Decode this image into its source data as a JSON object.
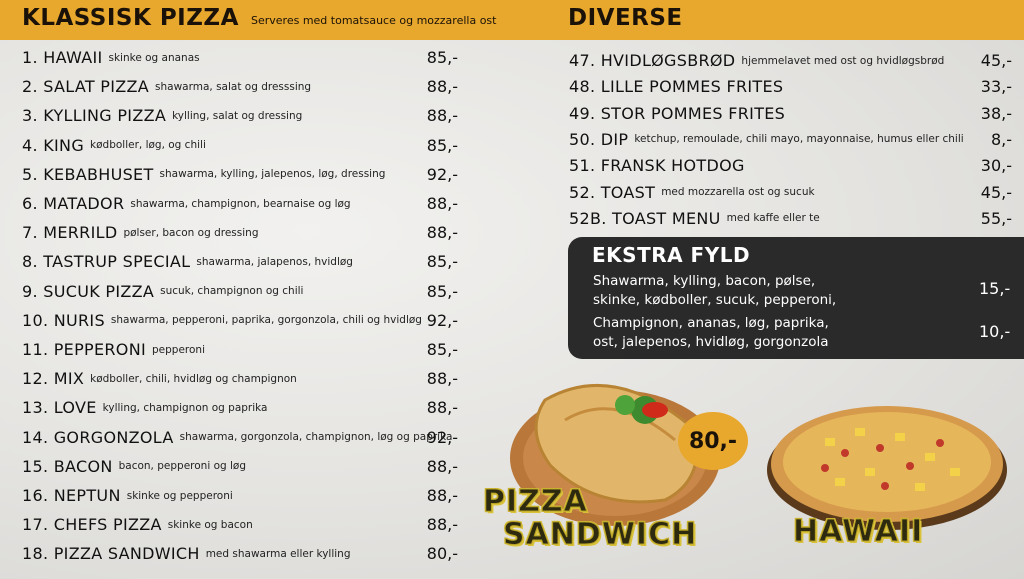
{
  "header": {
    "left_title": "KLASSISK PIZZA",
    "left_subtitle": "Serveres med tomatsauce og mozzarella ost",
    "right_title": "DIVERSE"
  },
  "pizzas": [
    {
      "name": "1. HAWAII",
      "desc": "skinke og ananas",
      "price": "85,-"
    },
    {
      "name": "2. SALAT PIZZA",
      "desc": "shawarma, salat og dresssing",
      "price": "88,-"
    },
    {
      "name": "3. KYLLING PIZZA",
      "desc": "kylling, salat og dressing",
      "price": "88,-"
    },
    {
      "name": "4. KING",
      "desc": "kødboller, løg, og chili",
      "price": "85,-"
    },
    {
      "name": "5. KEBABHUSET",
      "desc": "shawarma, kylling, jalepenos, løg, dressing",
      "price": "92,-"
    },
    {
      "name": "6. MATADOR",
      "desc": "shawarma, champignon, bearnaise og løg",
      "price": "88,-"
    },
    {
      "name": "7. MERRILD",
      "desc": "pølser, bacon og dressing",
      "price": "88,-"
    },
    {
      "name": "8. TASTRUP SPECIAL",
      "desc": "shawarma, jalapenos, hvidløg",
      "price": "85,-"
    },
    {
      "name": "9. SUCUK PIZZA",
      "desc": "sucuk, champignon og chili",
      "price": "85,-"
    },
    {
      "name": "10. NURIS",
      "desc": "shawarma, pepperoni, paprika, gorgonzola, chili og hvidløg",
      "price": "92,-"
    },
    {
      "name": "11. PEPPERONI",
      "desc": "pepperoni",
      "price": "85,-"
    },
    {
      "name": "12. MIX",
      "desc": "kødboller, chili, hvidløg og champignon",
      "price": "88,-"
    },
    {
      "name": "13. LOVE",
      "desc": "kylling, champignon og paprika",
      "price": "88,-"
    },
    {
      "name": "14. GORGONZOLA",
      "desc": "shawarma, gorgonzola, champignon, løg og paprika",
      "price": "92,-"
    },
    {
      "name": "15. BACON",
      "desc": "bacon, pepperoni  og løg",
      "price": "88,-"
    },
    {
      "name": "16. NEPTUN",
      "desc": "skinke og pepperoni",
      "price": "88,-"
    },
    {
      "name": "17. CHEFS PIZZA",
      "desc": "skinke og bacon",
      "price": "88,-"
    },
    {
      "name": "18. PIZZA SANDWICH",
      "desc": "med shawarma eller kylling",
      "price": "80,-"
    }
  ],
  "diverse": [
    {
      "name": "47. HVIDLØGSBRØD",
      "desc": "hjemmelavet med ost og hvidløgsbrød",
      "price": "45,-"
    },
    {
      "name": "48. LILLE POMMES FRITES",
      "desc": "",
      "price": "33,-"
    },
    {
      "name": "49. STOR POMMES FRITES",
      "desc": "",
      "price": "38,-"
    },
    {
      "name": "50. DIP",
      "desc": "ketchup, remoulade, chili mayo, mayonnaise, humus eller chili",
      "price": "8,-"
    },
    {
      "name": "51. FRANSK HOTDOG",
      "desc": "",
      "price": "30,-"
    },
    {
      "name": "52. TOAST",
      "desc": "med mozzarella ost og sucuk",
      "price": "45,-"
    },
    {
      "name": "52B. TOAST MENU",
      "desc": "med kaffe eller te",
      "price": "55,-"
    }
  ],
  "ekstra": {
    "title": "EKSTRA FYLD",
    "group1_line1": "Shawarma, kylling, bacon, pølse,",
    "group1_line2": "skinke, kødboller, sucuk, pepperoni,",
    "group1_price": "15,-",
    "group2_line1": "Champignon, ananas, løg, paprika,",
    "group2_line2": "ost, jalepenos, hvidløg, gorgonzola",
    "group2_price": "10,-"
  },
  "promo": {
    "sandwich_line1": "PIZZA",
    "sandwich_line2": "SANDWICH",
    "sandwich_price": "80,-",
    "hawaii_label": "HAWAII"
  },
  "colors": {
    "accent": "#e8a72d",
    "panel": "#2a2a2a",
    "brand_text": "#d9c23a"
  }
}
